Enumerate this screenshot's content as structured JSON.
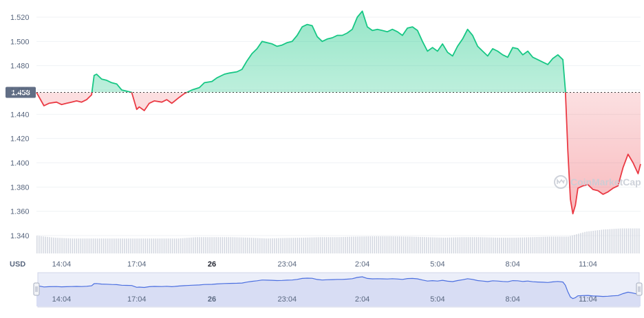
{
  "chart_data": {
    "type": "line",
    "unit_label": "USD",
    "reference_value": 1.458,
    "reference_label": "1.458",
    "ylim": [
      1.33,
      1.53
    ],
    "y_ticks": [
      1.34,
      1.36,
      1.38,
      1.4,
      1.42,
      1.44,
      1.46,
      1.48,
      1.5,
      1.52
    ],
    "y_tick_labels": [
      "1.340",
      "1.360",
      "1.380",
      "1.400",
      "1.420",
      "1.440",
      "1.460",
      "1.480",
      "1.500",
      "1.520"
    ],
    "x_ticks": [
      {
        "label": "14:04",
        "t": 1.0,
        "bold": false
      },
      {
        "label": "17:04",
        "t": 4.0,
        "bold": false
      },
      {
        "label": "26",
        "t": 7.0,
        "bold": true
      },
      {
        "label": "23:04",
        "t": 10.0,
        "bold": false
      },
      {
        "label": "2:04",
        "t": 13.0,
        "bold": false
      },
      {
        "label": "5:04",
        "t": 16.0,
        "bold": false
      },
      {
        "label": "8:04",
        "t": 19.0,
        "bold": false
      },
      {
        "label": "11:04",
        "t": 22.0,
        "bold": false
      }
    ],
    "x_range": [
      0,
      24.1
    ],
    "grid": true,
    "up_color": "#16c784",
    "down_color": "#ea3943",
    "watermark": "CoinMarketCap",
    "series": [
      {
        "x": [
          0.0,
          0.3,
          0.5,
          0.8,
          1.0,
          1.2,
          1.4,
          1.6,
          1.8,
          2.0,
          2.2,
          2.3,
          2.4,
          2.6,
          2.8,
          3.0,
          3.2,
          3.4,
          3.6,
          3.8,
          4.0,
          4.1,
          4.3,
          4.5,
          4.7,
          5.0,
          5.2,
          5.4,
          5.7,
          5.9,
          6.0,
          6.2,
          6.5,
          6.7,
          7.0,
          7.2,
          7.5,
          7.7,
          8.0,
          8.2,
          8.4,
          8.6,
          8.8,
          9.0,
          9.2,
          9.4,
          9.6,
          9.8,
          10.0,
          10.2,
          10.4,
          10.6,
          10.8,
          11.0,
          11.2,
          11.4,
          11.6,
          11.8,
          12.0,
          12.2,
          12.4,
          12.6,
          12.8,
          13.0,
          13.2,
          13.4,
          13.6,
          13.8,
          14.0,
          14.2,
          14.4,
          14.6,
          14.8,
          15.0,
          15.2,
          15.4,
          15.6,
          15.8,
          16.0,
          16.2,
          16.4,
          16.6,
          16.8,
          17.0,
          17.2,
          17.4,
          17.6,
          17.8,
          18.0,
          18.2,
          18.4,
          18.6,
          18.8,
          19.0,
          19.2,
          19.4,
          19.6,
          19.8,
          20.0,
          20.2,
          20.4,
          20.6,
          20.8,
          21.0,
          21.1,
          21.2,
          21.3,
          21.4,
          21.5,
          21.6,
          21.8,
          22.0,
          22.2,
          22.4,
          22.6,
          22.8,
          23.0,
          23.2,
          23.4,
          23.6,
          23.8,
          24.0,
          24.1
        ],
        "values": [
          1.458,
          1.447,
          1.449,
          1.45,
          1.448,
          1.449,
          1.45,
          1.451,
          1.45,
          1.452,
          1.456,
          1.472,
          1.473,
          1.469,
          1.468,
          1.466,
          1.465,
          1.46,
          1.459,
          1.458,
          1.444,
          1.446,
          1.443,
          1.449,
          1.451,
          1.45,
          1.452,
          1.449,
          1.454,
          1.457,
          1.458,
          1.46,
          1.462,
          1.466,
          1.467,
          1.47,
          1.473,
          1.474,
          1.475,
          1.477,
          1.484,
          1.49,
          1.494,
          1.5,
          1.499,
          1.498,
          1.496,
          1.497,
          1.499,
          1.5,
          1.505,
          1.512,
          1.514,
          1.513,
          1.504,
          1.5,
          1.502,
          1.503,
          1.505,
          1.505,
          1.507,
          1.51,
          1.52,
          1.525,
          1.512,
          1.509,
          1.51,
          1.509,
          1.508,
          1.51,
          1.508,
          1.505,
          1.511,
          1.512,
          1.509,
          1.5,
          1.492,
          1.495,
          1.492,
          1.498,
          1.491,
          1.488,
          1.496,
          1.502,
          1.51,
          1.505,
          1.496,
          1.492,
          1.488,
          1.494,
          1.492,
          1.489,
          1.487,
          1.495,
          1.494,
          1.489,
          1.492,
          1.487,
          1.485,
          1.483,
          1.481,
          1.486,
          1.489,
          1.485,
          1.46,
          1.41,
          1.37,
          1.358,
          1.365,
          1.379,
          1.381,
          1.382,
          1.378,
          1.377,
          1.374,
          1.376,
          1.379,
          1.381,
          1.396,
          1.407,
          1.4,
          1.391,
          1.399
        ]
      }
    ],
    "volume_level": [
      0.65,
      0.58,
      0.55,
      0.55,
      0.55,
      0.55,
      0.55,
      0.55,
      0.55,
      0.6,
      0.6,
      0.6,
      0.58,
      0.55,
      0.57,
      0.58,
      0.6,
      0.6,
      0.62,
      0.63,
      0.63,
      0.62,
      0.6,
      0.58,
      0.6,
      0.6,
      0.58,
      0.58,
      0.6,
      0.62,
      0.62,
      0.8,
      0.88,
      0.92,
      0.92
    ],
    "navigator": {
      "x_ticks": [
        "14:04",
        "17:04",
        "26",
        "23:04",
        "2:04",
        "5:04",
        "8:04",
        "11:04"
      ]
    }
  }
}
